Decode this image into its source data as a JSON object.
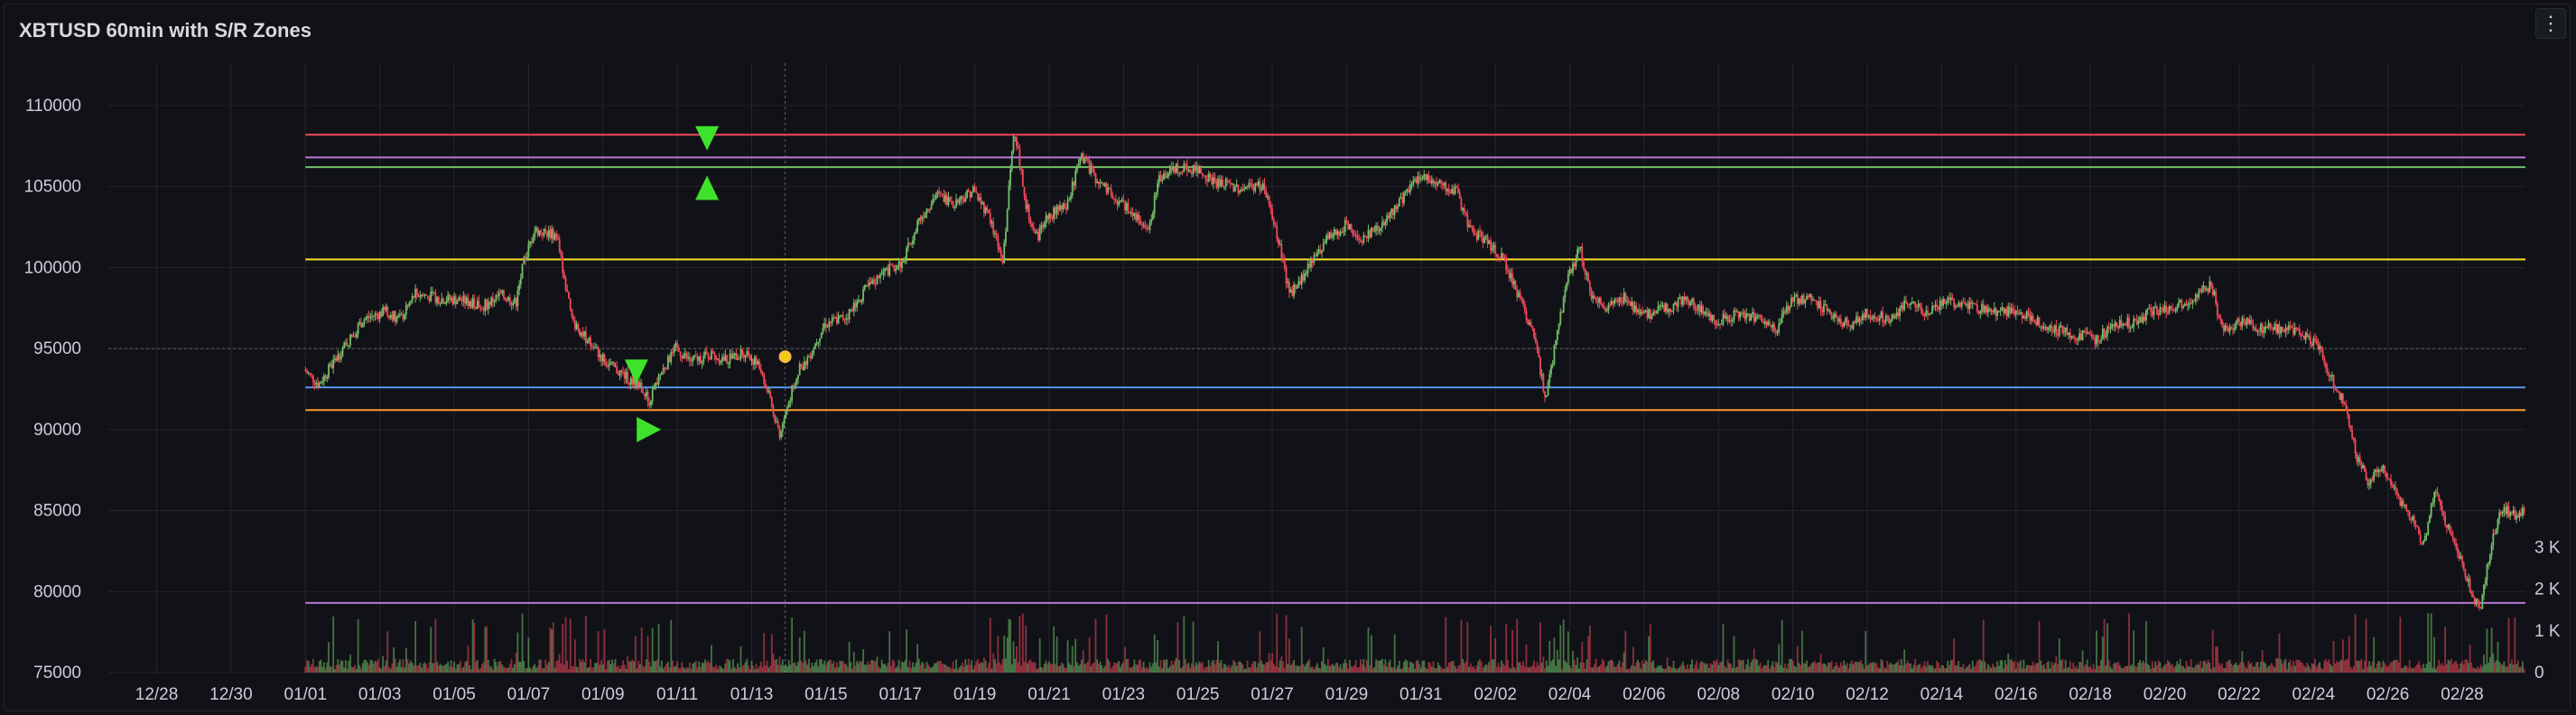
{
  "panel": {
    "title": "XBTUSD 60min with S/R Zones",
    "menu_icon": "vertical-ellipsis-icon",
    "menu_label": "⋮"
  },
  "chart_data": {
    "type": "candlestick",
    "title": "XBTUSD 60min with S/R Zones",
    "x_ticks": [
      "12/28",
      "12/30",
      "01/01",
      "01/03",
      "01/05",
      "01/07",
      "01/09",
      "01/11",
      "01/13",
      "01/15",
      "01/17",
      "01/19",
      "01/21",
      "01/23",
      "01/25",
      "01/27",
      "01/29",
      "01/31",
      "02/02",
      "02/04",
      "02/06",
      "02/08",
      "02/10",
      "02/12",
      "02/14",
      "02/16",
      "02/18",
      "02/20",
      "02/22",
      "02/24",
      "02/26",
      "02/28"
    ],
    "x_tick_days": [
      -4,
      -2,
      0,
      2,
      4,
      6,
      8,
      10,
      12,
      14,
      16,
      18,
      20,
      22,
      24,
      26,
      28,
      30,
      32,
      34,
      36,
      38,
      40,
      42,
      44,
      46,
      48,
      50,
      52,
      54,
      56,
      58
    ],
    "x_range_days": [
      -5.3,
      59.7
    ],
    "y_ticks": [
      "110000",
      "105000",
      "100000",
      "95000",
      "90000",
      "85000",
      "80000",
      "75000"
    ],
    "y_range": [
      75000,
      111500
    ],
    "volume_ticks": [
      "3 K",
      "2 K",
      "1 K",
      "0"
    ],
    "volume_tick_values": [
      3000,
      2000,
      1000,
      0
    ],
    "grid": true,
    "price_path": [
      [
        0,
        93700
      ],
      [
        0.4,
        92800
      ],
      [
        1,
        94800
      ],
      [
        1.6,
        96800
      ],
      [
        2.2,
        97300
      ],
      [
        2.6,
        96800
      ],
      [
        3,
        98400
      ],
      [
        3.6,
        98100
      ],
      [
        4.2,
        98000
      ],
      [
        4.8,
        97600
      ],
      [
        5.3,
        98300
      ],
      [
        5.7,
        97800
      ],
      [
        5.9,
        100200
      ],
      [
        6.2,
        102300
      ],
      [
        6.8,
        102000
      ],
      [
        7.2,
        96800
      ],
      [
        7.7,
        95300
      ],
      [
        8.2,
        94000
      ],
      [
        8.7,
        93200
      ],
      [
        9.1,
        92500
      ],
      [
        9.3,
        91800
      ],
      [
        9.6,
        93500
      ],
      [
        10,
        95000
      ],
      [
        10.4,
        94200
      ],
      [
        10.9,
        94600
      ],
      [
        11.4,
        94300
      ],
      [
        11.9,
        94800
      ],
      [
        12.3,
        93700
      ],
      [
        12.6,
        91200
      ],
      [
        12.8,
        89700
      ],
      [
        13.1,
        92200
      ],
      [
        13.3,
        93600
      ],
      [
        13.6,
        94600
      ],
      [
        14,
        96500
      ],
      [
        14.6,
        97000
      ],
      [
        15.1,
        98600
      ],
      [
        15.6,
        99700
      ],
      [
        16.1,
        100300
      ],
      [
        16.5,
        102800
      ],
      [
        17,
        104500
      ],
      [
        17.5,
        104000
      ],
      [
        18,
        104800
      ],
      [
        18.4,
        103300
      ],
      [
        18.8,
        100400
      ],
      [
        19.1,
        108800
      ],
      [
        19.4,
        104000
      ],
      [
        19.7,
        101800
      ],
      [
        20,
        103200
      ],
      [
        20.5,
        103700
      ],
      [
        20.9,
        106900
      ],
      [
        21.3,
        105500
      ],
      [
        21.8,
        104200
      ],
      [
        22.3,
        103400
      ],
      [
        22.7,
        102200
      ],
      [
        23,
        105600
      ],
      [
        23.5,
        106200
      ],
      [
        24,
        106100
      ],
      [
        24.6,
        105200
      ],
      [
        25.2,
        104900
      ],
      [
        25.8,
        105100
      ],
      [
        26.2,
        101800
      ],
      [
        26.5,
        98300
      ],
      [
        27,
        99900
      ],
      [
        27.5,
        101700
      ],
      [
        28,
        102600
      ],
      [
        28.4,
        101800
      ],
      [
        29,
        102600
      ],
      [
        29.5,
        104200
      ],
      [
        30,
        105700
      ],
      [
        30.5,
        105300
      ],
      [
        31,
        104600
      ],
      [
        31.4,
        102200
      ],
      [
        31.8,
        101700
      ],
      [
        32.3,
        100300
      ],
      [
        32.8,
        97500
      ],
      [
        33.1,
        95600
      ],
      [
        33.4,
        91800
      ],
      [
        33.7,
        95900
      ],
      [
        34,
        99300
      ],
      [
        34.3,
        101300
      ],
      [
        34.6,
        98500
      ],
      [
        35,
        97300
      ],
      [
        35.5,
        98200
      ],
      [
        36,
        97000
      ],
      [
        36.6,
        97500
      ],
      [
        37.2,
        98000
      ],
      [
        37.6,
        97300
      ],
      [
        38,
        96700
      ],
      [
        38.6,
        97200
      ],
      [
        39.2,
        96800
      ],
      [
        39.6,
        96200
      ],
      [
        40,
        98000
      ],
      [
        40.6,
        98000
      ],
      [
        41,
        97200
      ],
      [
        41.6,
        96400
      ],
      [
        42,
        97200
      ],
      [
        42.6,
        96800
      ],
      [
        43.1,
        97800
      ],
      [
        43.6,
        97300
      ],
      [
        44.2,
        97900
      ],
      [
        44.8,
        97600
      ],
      [
        45.5,
        97300
      ],
      [
        46.2,
        97200
      ],
      [
        46.8,
        96500
      ],
      [
        47.3,
        96000
      ],
      [
        47.8,
        95800
      ],
      [
        48.2,
        95500
      ],
      [
        48.6,
        96500
      ],
      [
        49.2,
        96600
      ],
      [
        49.6,
        97200
      ],
      [
        50.2,
        97500
      ],
      [
        50.8,
        98100
      ],
      [
        51.3,
        98900
      ],
      [
        51.6,
        96000
      ],
      [
        52,
        96700
      ],
      [
        52.6,
        96300
      ],
      [
        53.2,
        96200
      ],
      [
        53.7,
        95900
      ],
      [
        54.2,
        95100
      ],
      [
        54.6,
        92800
      ],
      [
        54.9,
        91500
      ],
      [
        55.2,
        88400
      ],
      [
        55.5,
        86800
      ],
      [
        55.9,
        87800
      ],
      [
        56.3,
        85700
      ],
      [
        56.7,
        84500
      ],
      [
        57,
        82800
      ],
      [
        57.3,
        86300
      ],
      [
        57.6,
        84200
      ],
      [
        57.9,
        82500
      ],
      [
        58.2,
        80700
      ],
      [
        58.5,
        78700
      ],
      [
        58.8,
        82600
      ],
      [
        59.1,
        85300
      ],
      [
        59.4,
        84700
      ],
      [
        59.7,
        85100
      ]
    ],
    "sr_levels": [
      {
        "price": 108200,
        "color": "#f2495c"
      },
      {
        "price": 106800,
        "color": "#b877d9"
      },
      {
        "price": 106200,
        "color": "#73bf69"
      },
      {
        "price": 100500,
        "color": "#fade2a"
      },
      {
        "price": 92600,
        "color": "#5794f2"
      },
      {
        "price": 91200,
        "color": "#ff9830"
      },
      {
        "price": 79300,
        "color": "#b877d9"
      }
    ],
    "markers": [
      {
        "kind": "down",
        "day": 10.8,
        "price": 108000,
        "color": "#3ee22b"
      },
      {
        "kind": "up",
        "day": 10.8,
        "price": 104900,
        "color": "#3ee22b"
      },
      {
        "kind": "down",
        "day": 8.9,
        "price": 93600,
        "color": "#3ee22b"
      },
      {
        "kind": "right",
        "day": 9.2,
        "price": 90000,
        "color": "#3ee22b"
      },
      {
        "kind": "dot",
        "day": 12.9,
        "price": 94500,
        "color": "#f2cc0c"
      }
    ],
    "colors": {
      "up": "#73bf69",
      "down": "#f2495c",
      "background": "#111217",
      "grid": "#24262c",
      "axis_text": "#ccccdc",
      "crosshair": "#8e8e8e"
    }
  }
}
